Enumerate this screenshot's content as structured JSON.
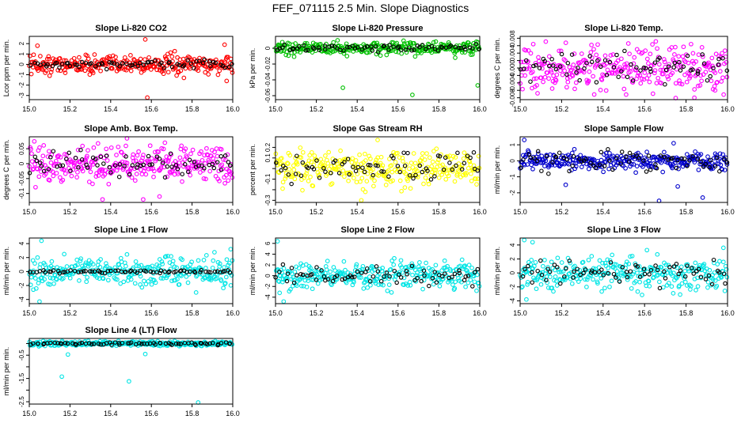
{
  "title": "FEF_071115  2.5 Min. Slope Diagnostics",
  "chart_data": [
    {
      "type": "scatter",
      "title": "Slope Li-820 CO2",
      "ylabel": "Lcor ppm per min.",
      "color": "#ff0000",
      "xlim": [
        15.0,
        16.0
      ],
      "ylim": [
        -3.4,
        2.7
      ],
      "yticks": [
        -3,
        -2,
        -1,
        0,
        1,
        2
      ],
      "yticklabels": [
        "-3",
        "-2",
        "-1",
        "0",
        "1",
        "2"
      ],
      "xticks": [
        15.0,
        15.2,
        15.4,
        15.6,
        15.8,
        16.0
      ],
      "xticklabels": [
        "15.0",
        "15.2",
        "15.4",
        "15.6",
        "15.8",
        "16.0"
      ],
      "spread": 0.45,
      "black_spread": 0.18,
      "outliers": [
        [
          15.04,
          1.8
        ],
        [
          15.57,
          2.4
        ],
        [
          15.58,
          -3.2
        ],
        [
          15.76,
          -1.3
        ],
        [
          15.97,
          -1.6
        ],
        [
          15.96,
          1.9
        ],
        [
          15.1,
          -1.1
        ],
        [
          15.66,
          -0.9
        ]
      ]
    },
    {
      "type": "scatter",
      "title": "Slope Li-820 Pressure",
      "ylabel": "kPa per min.",
      "color": "#00c000",
      "xlim": [
        15.0,
        16.0
      ],
      "ylim": [
        -0.065,
        0.015
      ],
      "yticks": [
        -0.06,
        -0.04,
        -0.02,
        0.0
      ],
      "yticklabels": [
        "-0.06",
        "-0.04",
        "-0.02",
        "0"
      ],
      "xticks": [
        15.0,
        15.2,
        15.4,
        15.6,
        15.8,
        16.0
      ],
      "xticklabels": [
        "15.0",
        "15.2",
        "15.4",
        "15.6",
        "15.8",
        "16.0"
      ],
      "spread": 0.004,
      "black_spread": 0.002,
      "outliers": [
        [
          15.33,
          -0.05
        ],
        [
          15.67,
          -0.059
        ],
        [
          15.99,
          -0.047
        ],
        [
          15.35,
          -0.01
        ],
        [
          15.88,
          -0.012
        ]
      ]
    },
    {
      "type": "scatter",
      "title": "Slope Li-820 Temp.",
      "ylabel": "degrees C per min.",
      "color": "#ff00ff",
      "xlim": [
        15.0,
        16.0
      ],
      "ylim": [
        -0.0085,
        0.0085
      ],
      "yticks": [
        -0.008,
        -0.006,
        -0.004,
        -0.002,
        0.0,
        0.002,
        0.004,
        0.006,
        0.008
      ],
      "yticklabels": [
        "-0.008",
        "-0.004",
        "0.000",
        "0.004",
        "0.008"
      ],
      "xticks": [
        15.0,
        15.2,
        15.4,
        15.6,
        15.8,
        16.0
      ],
      "xticklabels": [
        "15.0",
        "15.2",
        "15.4",
        "15.6",
        "15.8",
        "16.0"
      ],
      "spread": 0.0028,
      "black_spread": 0.0018,
      "outliers": [
        [
          15.75,
          -0.0082
        ],
        [
          15.84,
          -0.008
        ],
        [
          15.94,
          -0.006
        ]
      ]
    },
    {
      "type": "scatter",
      "title": "Slope Amb. Box Temp.",
      "ylabel": "degrees C per min.",
      "color": "#ff00ff",
      "xlim": [
        15.0,
        16.0
      ],
      "ylim": [
        -0.13,
        0.09
      ],
      "yticks": [
        -0.1,
        -0.05,
        0.0,
        0.05
      ],
      "yticklabels": [
        "-0.1",
        "-0.05",
        "0",
        "0.05"
      ],
      "xticks": [
        15.0,
        15.2,
        15.4,
        15.6,
        15.8,
        16.0
      ],
      "xticklabels": [
        "15.0",
        "15.2",
        "15.4",
        "15.6",
        "15.8",
        "16.0"
      ],
      "spread": 0.03,
      "black_spread": 0.02,
      "outliers": [
        [
          15.48,
          0.088
        ],
        [
          15.56,
          -0.12
        ],
        [
          15.64,
          -0.11
        ],
        [
          15.36,
          -0.12
        ]
      ]
    },
    {
      "type": "scatter",
      "title": "Slope Gas Stream RH",
      "ylabel": "percent per min.",
      "color": "#ffff00",
      "xlim": [
        15.0,
        16.0
      ],
      "ylim": [
        -0.32,
        0.3
      ],
      "yticks": [
        -0.3,
        -0.2,
        -0.1,
        0.0,
        0.1,
        0.2
      ],
      "yticklabels": [
        "-0.3",
        "-0.1",
        "0.1",
        "0.2"
      ],
      "xticks": [
        15.0,
        15.2,
        15.4,
        15.6,
        15.8,
        16.0
      ],
      "xticklabels": [
        "15.0",
        "15.2",
        "15.4",
        "15.6",
        "15.8",
        "16.0"
      ],
      "spread": 0.08,
      "black_spread": 0.07,
      "outliers": [
        [
          15.42,
          -0.3
        ],
        [
          15.5,
          0.27
        ],
        [
          15.44,
          -0.22
        ]
      ]
    },
    {
      "type": "scatter",
      "title": "Slope Sample Flow",
      "ylabel": "ml/min per min.",
      "color": "#0000cc",
      "xlim": [
        15.0,
        16.0
      ],
      "ylim": [
        -2.6,
        1.5
      ],
      "yticks": [
        -2,
        -1,
        0,
        1
      ],
      "yticklabels": [
        "-2",
        "-1",
        "0",
        "1"
      ],
      "xticks": [
        15.0,
        15.2,
        15.4,
        15.6,
        15.8,
        16.0
      ],
      "xticklabels": [
        "15.0",
        "15.2",
        "15.4",
        "15.6",
        "15.8",
        "16.0"
      ],
      "spread": 0.25,
      "black_spread": 0.35,
      "outliers": [
        [
          15.02,
          1.3
        ],
        [
          15.67,
          -2.6
        ],
        [
          15.74,
          1.1
        ],
        [
          15.76,
          -1.6
        ],
        [
          15.88,
          -2.3
        ],
        [
          15.22,
          -1.5
        ]
      ]
    },
    {
      "type": "scatter",
      "title": "Slope Line 1 Flow",
      "ylabel": "ml/min per min.",
      "color": "#00e5e5",
      "xlim": [
        15.0,
        16.0
      ],
      "ylim": [
        -4.6,
        4.8
      ],
      "yticks": [
        -4,
        -2,
        0,
        2,
        4
      ],
      "yticklabels": [
        "-4",
        "-2",
        "0",
        "2",
        "4"
      ],
      "xticks": [
        15.0,
        15.2,
        15.4,
        15.6,
        15.8,
        16.0
      ],
      "xticklabels": [
        "15.0",
        "15.2",
        "15.4",
        "15.6",
        "15.8",
        "16.0"
      ],
      "spread": 1.0,
      "black_spread": 0.12,
      "outliers": [
        [
          15.06,
          4.4
        ],
        [
          15.05,
          -4.3
        ],
        [
          15.02,
          -2.6
        ],
        [
          15.82,
          -3.0
        ],
        [
          15.99,
          3.2
        ]
      ]
    },
    {
      "type": "scatter",
      "title": "Slope Line 2 Flow",
      "ylabel": "ml/min per min.",
      "color": "#00e5e5",
      "xlim": [
        15.0,
        16.0
      ],
      "ylim": [
        -5.2,
        7.0
      ],
      "yticks": [
        -4,
        -2,
        0,
        2,
        4,
        6
      ],
      "yticklabels": [
        "-4",
        "-2",
        "0",
        "2",
        "4",
        "6"
      ],
      "xticks": [
        15.0,
        15.2,
        15.4,
        15.6,
        15.8,
        16.0
      ],
      "xticklabels": [
        "15.0",
        "15.2",
        "15.4",
        "15.6",
        "15.8",
        "16.0"
      ],
      "spread": 1.2,
      "black_spread": 0.9,
      "outliers": [
        [
          15.01,
          6.4
        ],
        [
          15.04,
          -4.8
        ],
        [
          15.02,
          -3.2
        ]
      ]
    },
    {
      "type": "scatter",
      "title": "Slope Line 3 Flow",
      "ylabel": "ml/min per min.",
      "color": "#00e5e5",
      "xlim": [
        15.0,
        16.0
      ],
      "ylim": [
        -4.4,
        5.0
      ],
      "yticks": [
        -4,
        -2,
        0,
        2,
        4
      ],
      "yticklabels": [
        "-4",
        "-2",
        "0",
        "2",
        "4"
      ],
      "xticks": [
        15.0,
        15.2,
        15.4,
        15.6,
        15.8,
        16.0
      ],
      "xticklabels": [
        "15.0",
        "15.2",
        "15.4",
        "15.6",
        "15.8",
        "16.0"
      ],
      "spread": 1.2,
      "black_spread": 0.9,
      "outliers": [
        [
          15.02,
          4.7
        ],
        [
          15.03,
          -3.8
        ],
        [
          15.06,
          4.4
        ],
        [
          15.98,
          3.6
        ]
      ]
    },
    {
      "type": "scatter",
      "title": "Slope Line 4 (LT) Flow",
      "ylabel": "ml/min per min.",
      "color": "#00e5e5",
      "xlim": [
        15.0,
        16.0
      ],
      "ylim": [
        -2.6,
        0.22
      ],
      "yticks": [
        -2.5,
        -2.0,
        -1.5,
        -1.0,
        -0.5,
        0.0
      ],
      "yticklabels": [
        "-2.5",
        "-1.5",
        "-0.5"
      ],
      "xticks": [
        15.0,
        15.2,
        15.4,
        15.6,
        15.8,
        16.0
      ],
      "xticklabels": [
        "15.0",
        "15.2",
        "15.4",
        "15.6",
        "15.8",
        "16.0"
      ],
      "spread": 0.05,
      "black_spread": 0.03,
      "outliers": [
        [
          15.16,
          -1.42
        ],
        [
          15.49,
          -1.62
        ],
        [
          15.83,
          -2.55
        ],
        [
          15.19,
          -0.47
        ],
        [
          15.57,
          -0.45
        ]
      ]
    }
  ]
}
